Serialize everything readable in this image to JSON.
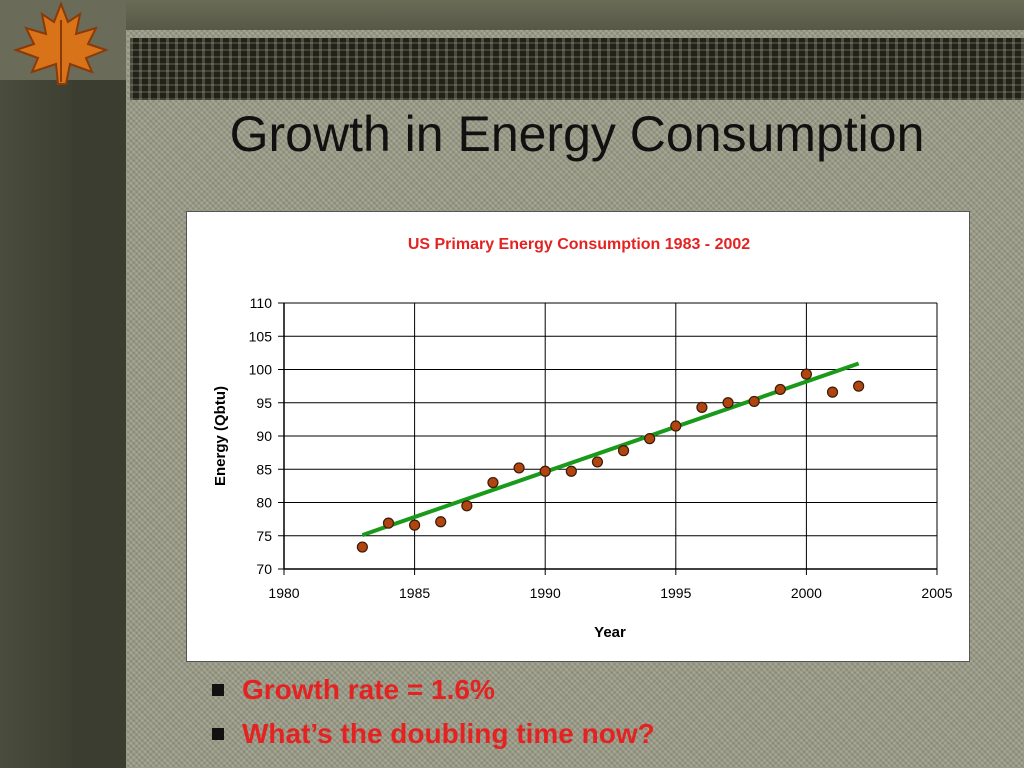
{
  "slide": {
    "title": "Growth in Energy Consumption",
    "bullets": [
      "Growth rate = 1.6%",
      "What’s the doubling time now?"
    ]
  },
  "colors": {
    "title_text": "#111111",
    "bullet_text": "#e52222",
    "chart_title": "#e52222",
    "marker_fill": "#b04510",
    "trend_line": "#1a9a1a"
  },
  "icons": {
    "corner_decoration": "maple-leaf-icon",
    "bullet": "square-bullet-icon"
  },
  "chart_data": {
    "type": "scatter",
    "title": "US Primary Energy Consumption 1983 - 2002",
    "xlabel": "Year",
    "ylabel": "Energy (Qbtu)",
    "xlim": [
      1980,
      2005
    ],
    "ylim": [
      70,
      110
    ],
    "xticks": [
      1980,
      1985,
      1990,
      1995,
      2000,
      2005
    ],
    "yticks": [
      70,
      75,
      80,
      85,
      90,
      95,
      100,
      105,
      110
    ],
    "grid": true,
    "legend": "none",
    "series": [
      {
        "x": [
          1983,
          1984,
          1985,
          1986,
          1987,
          1988,
          1989,
          1990,
          1991,
          1992,
          1993,
          1994,
          1995,
          1996,
          1997,
          1998,
          1999,
          2000,
          2001,
          2002
        ],
        "y": [
          73.3,
          76.9,
          76.6,
          77.1,
          79.5,
          83.0,
          85.2,
          84.7,
          84.7,
          86.1,
          87.8,
          89.6,
          91.5,
          94.3,
          95.0,
          95.2,
          97.0,
          99.3,
          96.6,
          97.5
        ]
      }
    ],
    "trendline": {
      "x": [
        1983,
        2002
      ],
      "y": [
        75.1,
        100.9
      ]
    }
  }
}
